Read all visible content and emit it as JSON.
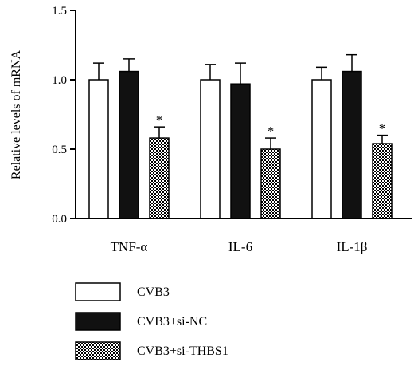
{
  "chart_data": {
    "type": "bar",
    "title": "",
    "xlabel": "",
    "ylabel": "Relative levels of mRNA",
    "ylim": [
      0,
      1.5
    ],
    "yticks": [
      "0.0",
      "0.5",
      "1.0",
      "1.5"
    ],
    "grid": false,
    "legend_position": "bottom-left",
    "categories": [
      "TNF-α",
      "IL-6",
      "IL-1β"
    ],
    "series": [
      {
        "name": "CVB3",
        "fill": "white",
        "values": [
          1.0,
          1.0,
          1.0
        ],
        "errors": [
          0.12,
          0.11,
          0.09
        ],
        "significance": [
          "",
          "",
          ""
        ]
      },
      {
        "name": "CVB3+si-NC",
        "fill": "black",
        "values": [
          1.06,
          0.97,
          1.06
        ],
        "errors": [
          0.09,
          0.15,
          0.12
        ],
        "significance": [
          "",
          "",
          ""
        ]
      },
      {
        "name": "CVB3+si-THBS1",
        "fill": "checkered",
        "values": [
          0.58,
          0.5,
          0.54
        ],
        "errors": [
          0.08,
          0.08,
          0.06
        ],
        "significance": [
          "*",
          "*",
          "*"
        ]
      }
    ],
    "colors": {
      "ink": "#000000",
      "paper": "#ffffff",
      "bar_dark": "#111111"
    }
  }
}
